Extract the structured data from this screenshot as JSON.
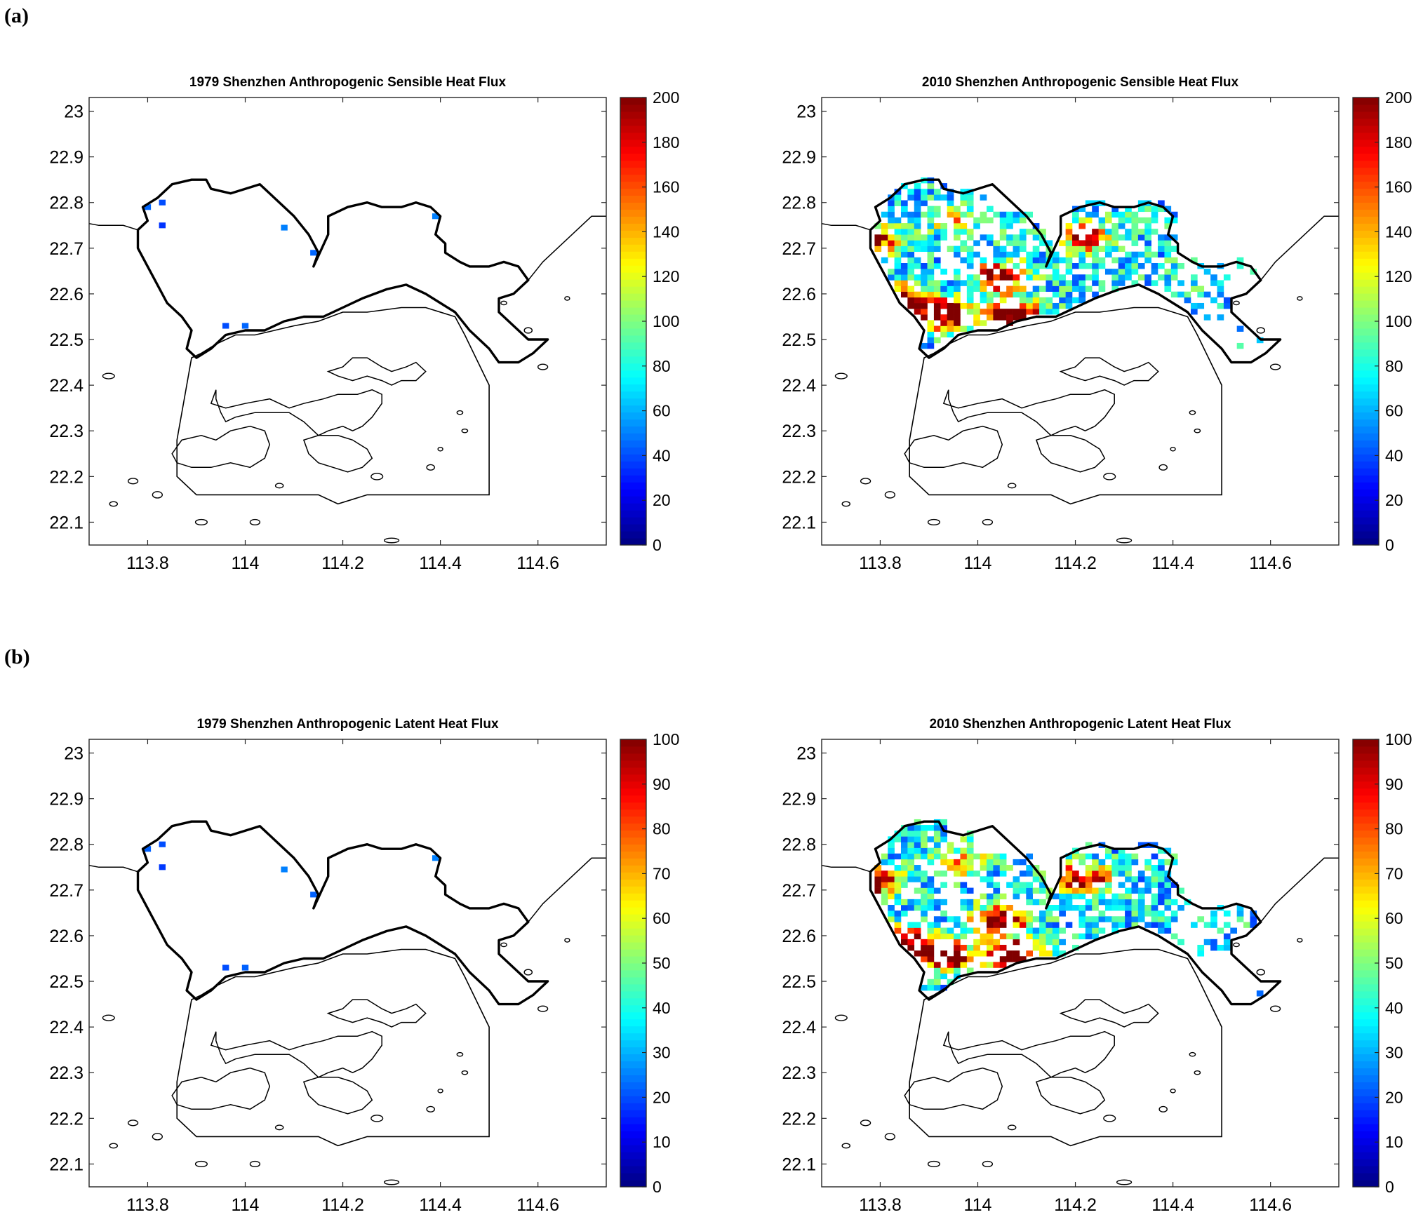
{
  "panel_labels": {
    "a": "(a)",
    "b": "(b)"
  },
  "chart_data": [
    {
      "type": "heatmap",
      "title": "1979 Shenzhen Anthropogenic Sensible Heat Flux",
      "xlabel": "",
      "ylabel": "",
      "xlim": [
        113.68,
        114.74
      ],
      "ylim": [
        22.05,
        23.03
      ],
      "xticks": [
        113.8,
        114,
        114.2,
        114.4,
        114.6
      ],
      "yticks": [
        22.1,
        22.2,
        22.3,
        22.4,
        22.5,
        22.6,
        22.7,
        22.8,
        22.9,
        23
      ],
      "colorbar": {
        "min": 0,
        "max": 200,
        "ticks": [
          0,
          20,
          40,
          60,
          80,
          100,
          120,
          140,
          160,
          180,
          200
        ],
        "colormap": "jet"
      },
      "cells": [
        [
          113.8,
          22.79,
          45
        ],
        [
          113.83,
          22.8,
          40
        ],
        [
          113.83,
          22.75,
          35
        ],
        [
          113.96,
          22.53,
          40
        ],
        [
          114.0,
          22.53,
          45
        ],
        [
          114.08,
          22.745,
          50
        ],
        [
          114.14,
          22.69,
          45
        ],
        [
          114.39,
          22.77,
          50
        ]
      ],
      "note_cells": "[lon, lat, value] grid cells with nonzero flux"
    },
    {
      "type": "heatmap",
      "title": "2010 Shenzhen Anthropogenic Sensible Heat Flux",
      "xlabel": "",
      "ylabel": "",
      "xlim": [
        113.68,
        114.74
      ],
      "ylim": [
        22.05,
        23.03
      ],
      "xticks": [
        113.8,
        114,
        114.2,
        114.4,
        114.6
      ],
      "yticks": [
        22.1,
        22.2,
        22.3,
        22.4,
        22.5,
        22.6,
        22.7,
        22.8,
        22.9,
        23
      ],
      "colorbar": {
        "min": 0,
        "max": 200,
        "ticks": [
          0,
          20,
          40,
          60,
          80,
          100,
          120,
          140,
          160,
          180,
          200
        ],
        "colormap": "jet"
      },
      "hotspots": [
        [
          113.93,
          22.55,
          210
        ],
        [
          114.07,
          22.55,
          210
        ],
        [
          113.84,
          22.58,
          190
        ],
        [
          114.04,
          22.63,
          170
        ],
        [
          113.79,
          22.71,
          130
        ],
        [
          114.21,
          22.72,
          150
        ],
        [
          113.95,
          22.76,
          90
        ]
      ],
      "max_value": 200
    },
    {
      "type": "heatmap",
      "title": "1979 Shenzhen Anthropogenic Latent Heat Flux",
      "xlabel": "",
      "ylabel": "",
      "xlim": [
        113.68,
        114.74
      ],
      "ylim": [
        22.05,
        23.03
      ],
      "xticks": [
        113.8,
        114,
        114.2,
        114.4,
        114.6
      ],
      "yticks": [
        22.1,
        22.2,
        22.3,
        22.4,
        22.5,
        22.6,
        22.7,
        22.8,
        22.9,
        23
      ],
      "colorbar": {
        "min": 0,
        "max": 100,
        "ticks": [
          0,
          10,
          20,
          30,
          40,
          50,
          60,
          70,
          80,
          90,
          100
        ],
        "colormap": "jet"
      },
      "cells": [
        [
          113.8,
          22.79,
          22
        ],
        [
          113.83,
          22.8,
          20
        ],
        [
          113.83,
          22.75,
          18
        ],
        [
          113.96,
          22.53,
          20
        ],
        [
          114.0,
          22.53,
          22
        ],
        [
          114.08,
          22.745,
          25
        ],
        [
          114.14,
          22.69,
          22
        ],
        [
          114.39,
          22.77,
          25
        ]
      ]
    },
    {
      "type": "heatmap",
      "title": "2010 Shenzhen Anthropogenic Latent Heat Flux",
      "xlabel": "",
      "ylabel": "",
      "xlim": [
        113.68,
        114.74
      ],
      "ylim": [
        22.05,
        23.03
      ],
      "xticks": [
        113.8,
        114,
        114.2,
        114.4,
        114.6
      ],
      "yticks": [
        22.1,
        22.2,
        22.3,
        22.4,
        22.5,
        22.6,
        22.7,
        22.8,
        22.9,
        23
      ],
      "colorbar": {
        "min": 0,
        "max": 100,
        "ticks": [
          0,
          10,
          20,
          30,
          40,
          50,
          60,
          70,
          80,
          90,
          100
        ],
        "colormap": "jet"
      },
      "hotspots": [
        [
          113.93,
          22.55,
          110
        ],
        [
          114.07,
          22.55,
          110
        ],
        [
          113.84,
          22.58,
          100
        ],
        [
          114.04,
          22.63,
          95
        ],
        [
          113.79,
          22.71,
          75
        ],
        [
          114.21,
          22.72,
          80
        ],
        [
          113.95,
          22.76,
          50
        ]
      ],
      "max_value": 100
    }
  ],
  "geo": {
    "shenzhen_boundary": [
      [
        113.8,
        22.76
      ],
      [
        113.79,
        22.79
      ],
      [
        113.82,
        22.81
      ],
      [
        113.85,
        22.84
      ],
      [
        113.89,
        22.85
      ],
      [
        113.92,
        22.85
      ],
      [
        113.93,
        22.83
      ],
      [
        113.97,
        22.82
      ],
      [
        114.0,
        22.83
      ],
      [
        114.03,
        22.84
      ],
      [
        114.06,
        22.81
      ],
      [
        114.1,
        22.77
      ],
      [
        114.13,
        22.73
      ],
      [
        114.15,
        22.69
      ],
      [
        114.14,
        22.66
      ],
      [
        114.17,
        22.73
      ],
      [
        114.17,
        22.77
      ],
      [
        114.21,
        22.79
      ],
      [
        114.25,
        22.8
      ],
      [
        114.28,
        22.79
      ],
      [
        114.32,
        22.79
      ],
      [
        114.35,
        22.8
      ],
      [
        114.38,
        22.79
      ],
      [
        114.4,
        22.77
      ],
      [
        114.39,
        22.73
      ],
      [
        114.41,
        22.71
      ],
      [
        114.41,
        22.69
      ],
      [
        114.44,
        22.67
      ],
      [
        114.46,
        22.66
      ],
      [
        114.5,
        22.66
      ],
      [
        114.53,
        22.67
      ],
      [
        114.56,
        22.66
      ],
      [
        114.58,
        22.63
      ],
      [
        114.55,
        22.6
      ],
      [
        114.52,
        22.59
      ],
      [
        114.52,
        22.56
      ],
      [
        114.55,
        22.53
      ],
      [
        114.58,
        22.5
      ],
      [
        114.62,
        22.5
      ],
      [
        114.59,
        22.47
      ],
      [
        114.56,
        22.45
      ],
      [
        114.52,
        22.45
      ],
      [
        114.5,
        22.48
      ],
      [
        114.46,
        22.52
      ],
      [
        114.43,
        22.56
      ],
      [
        114.4,
        22.58
      ],
      [
        114.37,
        22.6
      ],
      [
        114.33,
        22.62
      ],
      [
        114.29,
        22.61
      ],
      [
        114.24,
        22.59
      ],
      [
        114.2,
        22.57
      ],
      [
        114.16,
        22.55
      ],
      [
        114.12,
        22.55
      ],
      [
        114.08,
        22.54
      ],
      [
        114.04,
        22.52
      ],
      [
        114.0,
        22.52
      ],
      [
        113.96,
        22.51
      ],
      [
        113.93,
        22.48
      ],
      [
        113.9,
        22.46
      ],
      [
        113.88,
        22.48
      ],
      [
        113.89,
        22.52
      ],
      [
        113.87,
        22.55
      ],
      [
        113.84,
        22.58
      ],
      [
        113.82,
        22.62
      ],
      [
        113.8,
        22.66
      ],
      [
        113.78,
        22.7
      ],
      [
        113.78,
        22.74
      ],
      [
        113.8,
        22.76
      ]
    ],
    "hk_boundary": [
      [
        113.89,
        22.46
      ],
      [
        113.88,
        22.4
      ],
      [
        113.86,
        22.28
      ],
      [
        113.86,
        22.2
      ],
      [
        113.9,
        22.16
      ],
      [
        114.0,
        22.16
      ],
      [
        114.15,
        22.16
      ],
      [
        114.19,
        22.14
      ],
      [
        114.25,
        22.16
      ],
      [
        114.5,
        22.16
      ],
      [
        114.5,
        22.4
      ],
      [
        114.45,
        22.51
      ],
      [
        114.43,
        22.55
      ],
      [
        114.37,
        22.57
      ],
      [
        114.32,
        22.57
      ],
      [
        114.25,
        22.56
      ],
      [
        114.2,
        22.56
      ],
      [
        114.15,
        22.54
      ],
      [
        114.1,
        22.53
      ],
      [
        114.06,
        22.52
      ],
      [
        114.02,
        22.51
      ],
      [
        113.98,
        22.51
      ],
      [
        113.94,
        22.49
      ],
      [
        113.91,
        22.47
      ],
      [
        113.89,
        22.46
      ]
    ],
    "hk_coast": [
      [
        113.94,
        22.39
      ],
      [
        113.93,
        22.36
      ],
      [
        113.96,
        22.35
      ],
      [
        114.0,
        22.36
      ],
      [
        114.05,
        22.37
      ],
      [
        114.09,
        22.35
      ],
      [
        114.12,
        22.36
      ],
      [
        114.16,
        22.37
      ],
      [
        114.19,
        22.38
      ],
      [
        114.23,
        22.38
      ],
      [
        114.26,
        22.39
      ],
      [
        114.28,
        22.38
      ],
      [
        114.28,
        22.36
      ],
      [
        114.26,
        22.33
      ],
      [
        114.24,
        22.31
      ],
      [
        114.22,
        22.3
      ],
      [
        114.2,
        22.31
      ],
      [
        114.17,
        22.3
      ],
      [
        114.15,
        22.29
      ],
      [
        114.12,
        22.32
      ],
      [
        114.09,
        22.34
      ],
      [
        114.05,
        22.34
      ],
      [
        114.02,
        22.34
      ],
      [
        113.98,
        22.33
      ],
      [
        113.96,
        22.32
      ],
      [
        113.95,
        22.34
      ],
      [
        113.94,
        22.37
      ]
    ],
    "hk_coast2": [
      [
        114.17,
        22.43
      ],
      [
        114.2,
        22.44
      ],
      [
        114.22,
        22.46
      ],
      [
        114.25,
        22.46
      ],
      [
        114.28,
        22.44
      ],
      [
        114.3,
        22.43
      ],
      [
        114.33,
        22.44
      ],
      [
        114.35,
        22.45
      ],
      [
        114.37,
        22.43
      ],
      [
        114.35,
        22.41
      ],
      [
        114.32,
        22.41
      ],
      [
        114.3,
        22.4
      ],
      [
        114.28,
        22.41
      ],
      [
        114.25,
        22.42
      ],
      [
        114.22,
        22.41
      ],
      [
        114.19,
        22.42
      ],
      [
        114.17,
        22.43
      ]
    ],
    "lantau": [
      [
        113.85,
        22.25
      ],
      [
        113.87,
        22.28
      ],
      [
        113.91,
        22.29
      ],
      [
        113.94,
        22.28
      ],
      [
        113.97,
        22.3
      ],
      [
        114.01,
        22.31
      ],
      [
        114.04,
        22.3
      ],
      [
        114.05,
        22.27
      ],
      [
        114.04,
        22.24
      ],
      [
        114.01,
        22.22
      ],
      [
        113.97,
        22.23
      ],
      [
        113.93,
        22.22
      ],
      [
        113.89,
        22.22
      ],
      [
        113.86,
        22.23
      ],
      [
        113.85,
        22.25
      ]
    ],
    "hk_island": [
      [
        114.12,
        22.28
      ],
      [
        114.15,
        22.29
      ],
      [
        114.19,
        22.29
      ],
      [
        114.22,
        22.28
      ],
      [
        114.25,
        22.26
      ],
      [
        114.26,
        22.24
      ],
      [
        114.24,
        22.22
      ],
      [
        114.21,
        22.21
      ],
      [
        114.18,
        22.22
      ],
      [
        114.15,
        22.23
      ],
      [
        114.13,
        22.25
      ],
      [
        114.12,
        22.28
      ]
    ],
    "mainland_west": [
      [
        113.6,
        22.75
      ],
      [
        113.65,
        22.76
      ],
      [
        113.7,
        22.75
      ],
      [
        113.75,
        22.75
      ],
      [
        113.78,
        22.74
      ]
    ],
    "mainland_east": [
      [
        114.58,
        22.63
      ],
      [
        114.61,
        22.67
      ],
      [
        114.64,
        22.7
      ],
      [
        114.67,
        22.73
      ],
      [
        114.71,
        22.77
      ],
      [
        114.74,
        22.77
      ]
    ],
    "islets": [
      [
        113.72,
        22.42,
        0.012,
        0.006
      ],
      [
        113.73,
        22.14,
        0.008,
        0.005
      ],
      [
        113.77,
        22.19,
        0.01,
        0.006
      ],
      [
        113.82,
        22.16,
        0.01,
        0.007
      ],
      [
        113.91,
        22.1,
        0.012,
        0.006
      ],
      [
        114.02,
        22.1,
        0.01,
        0.006
      ],
      [
        114.3,
        22.06,
        0.015,
        0.005
      ],
      [
        114.66,
        22.59,
        0.005,
        0.004
      ],
      [
        114.58,
        22.52,
        0.008,
        0.006
      ],
      [
        114.61,
        22.44,
        0.01,
        0.006
      ],
      [
        114.44,
        22.34,
        0.006,
        0.004
      ],
      [
        114.45,
        22.3,
        0.006,
        0.004
      ],
      [
        114.38,
        22.22,
        0.008,
        0.006
      ],
      [
        114.4,
        22.26,
        0.005,
        0.004
      ],
      [
        114.27,
        22.2,
        0.012,
        0.007
      ],
      [
        114.07,
        22.18,
        0.008,
        0.005
      ],
      [
        114.53,
        22.58,
        0.006,
        0.004
      ]
    ]
  }
}
